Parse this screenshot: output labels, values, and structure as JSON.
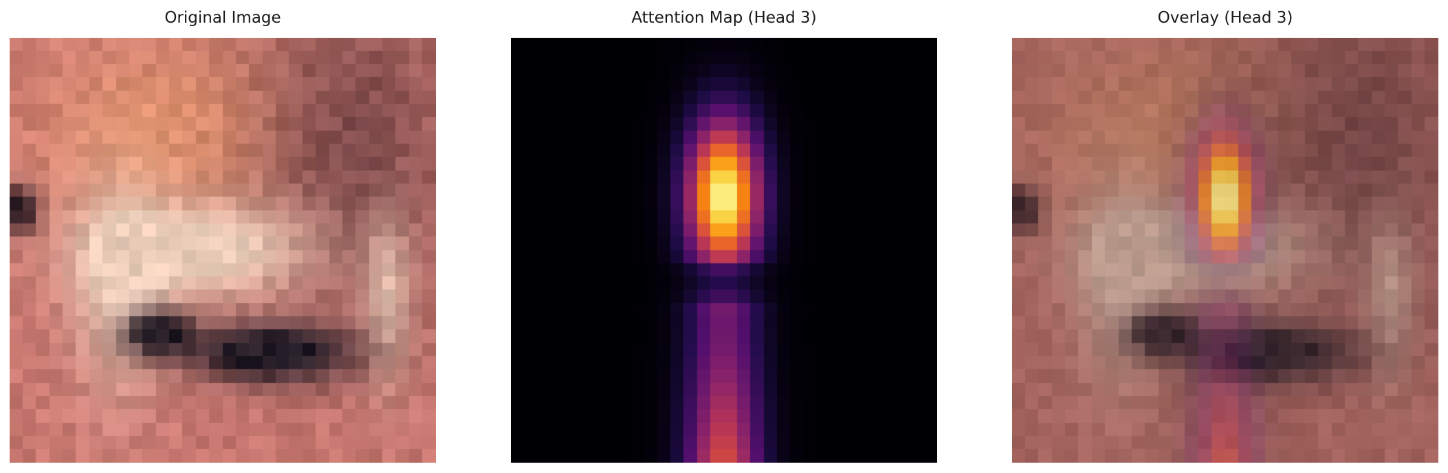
{
  "figure": {
    "panels": [
      {
        "id": "original",
        "title": "Original Image"
      },
      {
        "id": "attention",
        "title": "Attention Map (Head 3)"
      },
      {
        "id": "overlay",
        "title": "Overlay (Head 3)"
      }
    ],
    "colors": {
      "background": "#ffffff",
      "title_text": "#1a1a1a",
      "attention_colormap": "inferno"
    }
  }
}
